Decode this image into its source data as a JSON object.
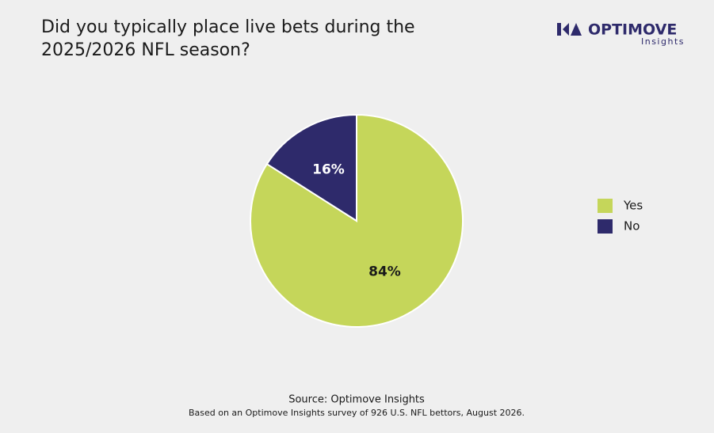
{
  "chart_data": {
    "type": "pie",
    "title": "Did you typically place live bets during the 2025/2026 NFL season?",
    "categories": [
      "Yes",
      "No"
    ],
    "values": [
      84,
      16
    ],
    "value_labels": [
      "84%",
      "16%"
    ],
    "colors": [
      "#c5d65a",
      "#2e2a6b"
    ],
    "legend": "right",
    "source": "Source: Optimove Insights",
    "note": "Based on an Optimove Insights survey of 926 U.S. NFL bettors, August 2026."
  },
  "logo": {
    "name": "OPTIMOVE",
    "tagline": "Insights"
  }
}
